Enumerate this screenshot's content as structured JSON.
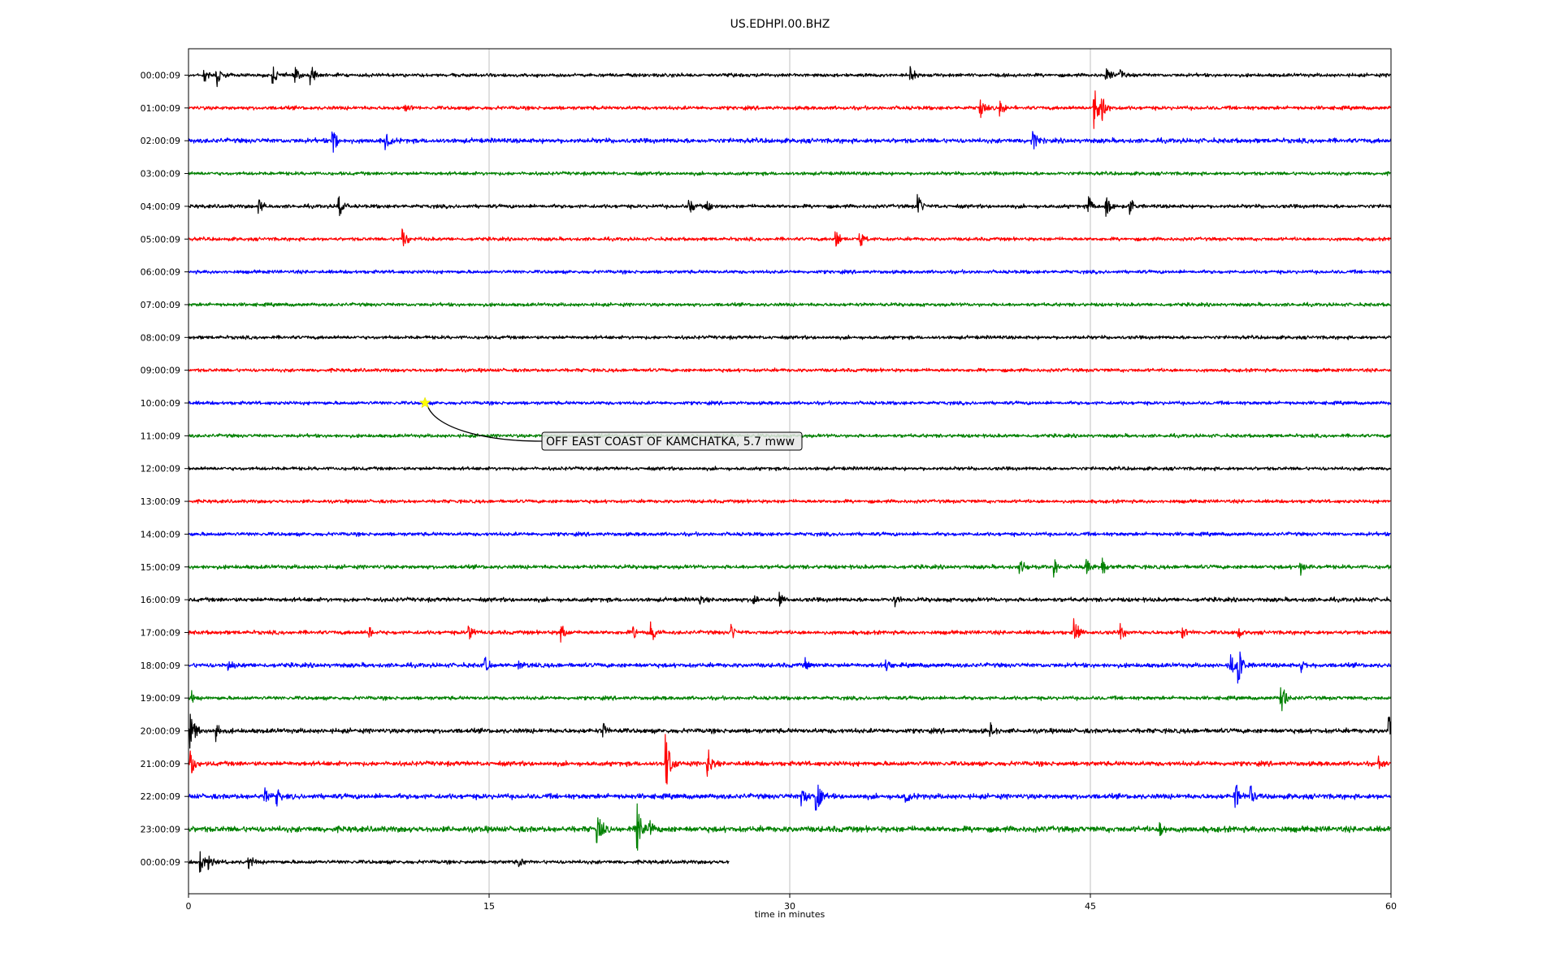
{
  "chart_data": {
    "type": "line",
    "title": "US.EDHPI.00.BHZ",
    "xlabel": "time in minutes",
    "xlim": [
      0,
      60
    ],
    "xticks": [
      0,
      15,
      30,
      45,
      60
    ],
    "xtick_labels": [
      "0",
      "15",
      "30",
      "45",
      "60"
    ],
    "grid": "vertical lines at 15, 30, 45",
    "line_colors": [
      "#000000",
      "#ff0000",
      "#0000ff",
      "#008000"
    ],
    "rows": [
      {
        "label": "00:00:09",
        "color": "#000000",
        "noise": 3.0,
        "end_minute": 60,
        "events": [
          [
            0.8,
            10
          ],
          [
            1.4,
            18
          ],
          [
            4.2,
            12
          ],
          [
            5.3,
            10
          ],
          [
            6.1,
            14
          ],
          [
            36,
            14
          ],
          [
            45.8,
            12
          ],
          [
            46.5,
            10
          ]
        ]
      },
      {
        "label": "01:00:09",
        "color": "#ff0000",
        "noise": 3.2,
        "end_minute": 60,
        "events": [
          [
            10.8,
            12
          ],
          [
            39.5,
            16
          ],
          [
            40.5,
            14
          ],
          [
            45.2,
            28
          ],
          [
            45.6,
            16
          ]
        ]
      },
      {
        "label": "02:00:09",
        "color": "#0000ff",
        "noise": 4.0,
        "end_minute": 60,
        "events": [
          [
            7.2,
            20
          ],
          [
            9.8,
            18
          ],
          [
            42.1,
            16
          ]
        ]
      },
      {
        "label": "03:00:09",
        "color": "#008000",
        "noise": 3.0,
        "end_minute": 60,
        "events": []
      },
      {
        "label": "04:00:09",
        "color": "#000000",
        "noise": 3.2,
        "end_minute": 60,
        "events": [
          [
            3.5,
            12
          ],
          [
            7.5,
            16
          ],
          [
            25,
            10
          ],
          [
            25.9,
            10
          ],
          [
            36.4,
            14
          ],
          [
            44.9,
            18
          ],
          [
            45.8,
            14
          ],
          [
            47,
            12
          ]
        ]
      },
      {
        "label": "05:00:09",
        "color": "#ff0000",
        "noise": 3.0,
        "end_minute": 60,
        "events": [
          [
            10.7,
            12
          ],
          [
            32.3,
            12
          ],
          [
            33.5,
            12
          ]
        ]
      },
      {
        "label": "06:00:09",
        "color": "#0000ff",
        "noise": 3.0,
        "end_minute": 60,
        "events": []
      },
      {
        "label": "07:00:09",
        "color": "#008000",
        "noise": 3.0,
        "end_minute": 60,
        "events": []
      },
      {
        "label": "08:00:09",
        "color": "#000000",
        "noise": 3.0,
        "end_minute": 60,
        "events": []
      },
      {
        "label": "09:00:09",
        "color": "#ff0000",
        "noise": 3.0,
        "end_minute": 60,
        "events": []
      },
      {
        "label": "10:00:09",
        "color": "#0000ff",
        "noise": 3.0,
        "end_minute": 60,
        "events": []
      },
      {
        "label": "11:00:09",
        "color": "#008000",
        "noise": 3.0,
        "end_minute": 60,
        "events": []
      },
      {
        "label": "12:00:09",
        "color": "#000000",
        "noise": 3.0,
        "end_minute": 60,
        "events": []
      },
      {
        "label": "13:00:09",
        "color": "#ff0000",
        "noise": 3.0,
        "end_minute": 60,
        "events": []
      },
      {
        "label": "14:00:09",
        "color": "#0000ff",
        "noise": 3.2,
        "end_minute": 60,
        "events": []
      },
      {
        "label": "15:00:09",
        "color": "#008000",
        "noise": 3.4,
        "end_minute": 60,
        "events": [
          [
            41.5,
            10
          ],
          [
            43.2,
            10
          ],
          [
            44.8,
            14
          ],
          [
            45.6,
            12
          ],
          [
            55.5,
            10
          ]
        ]
      },
      {
        "label": "16:00:09",
        "color": "#000000",
        "noise": 3.6,
        "end_minute": 60,
        "events": [
          [
            25.5,
            8
          ],
          [
            28.2,
            8
          ],
          [
            29.5,
            8
          ],
          [
            35.2,
            10
          ]
        ]
      },
      {
        "label": "17:00:09",
        "color": "#ff0000",
        "noise": 3.4,
        "end_minute": 60,
        "events": [
          [
            9,
            10
          ],
          [
            14,
            12
          ],
          [
            18.6,
            14
          ],
          [
            22.2,
            8
          ],
          [
            23.1,
            14
          ],
          [
            27.1,
            10
          ],
          [
            44.2,
            18
          ],
          [
            46.5,
            10
          ],
          [
            49.6,
            8
          ],
          [
            52.4,
            10
          ]
        ]
      },
      {
        "label": "18:00:09",
        "color": "#0000ff",
        "noise": 3.8,
        "end_minute": 60,
        "events": [
          [
            2,
            8
          ],
          [
            14.8,
            12
          ],
          [
            16.5,
            8
          ],
          [
            30.8,
            10
          ],
          [
            34.8,
            10
          ],
          [
            52,
            16
          ],
          [
            52.4,
            22
          ],
          [
            55.5,
            10
          ]
        ]
      },
      {
        "label": "19:00:09",
        "color": "#008000",
        "noise": 3.2,
        "end_minute": 60,
        "events": [
          [
            0.2,
            8
          ],
          [
            54.5,
            26
          ]
        ]
      },
      {
        "label": "20:00:09",
        "color": "#000000",
        "noise": 4.0,
        "end_minute": 60,
        "events": [
          [
            0.1,
            30
          ],
          [
            1.4,
            14
          ],
          [
            20.7,
            10
          ],
          [
            40,
            10
          ],
          [
            59.9,
            24
          ]
        ]
      },
      {
        "label": "21:00:09",
        "color": "#ff0000",
        "noise": 4.0,
        "end_minute": 60,
        "events": [
          [
            0.1,
            16
          ],
          [
            23.8,
            40
          ],
          [
            25.9,
            22
          ],
          [
            59.4,
            8
          ]
        ]
      },
      {
        "label": "22:00:09",
        "color": "#0000ff",
        "noise": 4.4,
        "end_minute": 60,
        "events": [
          [
            3.8,
            12
          ],
          [
            4.4,
            14
          ],
          [
            30.6,
            18
          ],
          [
            31.3,
            28
          ],
          [
            35.8,
            10
          ],
          [
            52.2,
            24
          ],
          [
            53,
            16
          ]
        ]
      },
      {
        "label": "23:00:09",
        "color": "#008000",
        "noise": 5.0,
        "end_minute": 60,
        "events": [
          [
            20.4,
            26
          ],
          [
            22.4,
            32
          ],
          [
            23,
            12
          ],
          [
            48.5,
            10
          ]
        ]
      },
      {
        "label": "00:00:09",
        "color": "#000000",
        "noise": 3.2,
        "end_minute": 27,
        "events": [
          [
            0.6,
            14
          ],
          [
            1.0,
            12
          ],
          [
            3,
            10
          ],
          [
            16.5,
            8
          ]
        ]
      }
    ],
    "annotation": {
      "text": "OFF EAST COAST OF KAMCHATKA, 5.7 mww",
      "row_index": 10,
      "minute": 11.8,
      "marker": "star",
      "marker_color": "#ffff00",
      "box_color": "#e6e6e6"
    }
  }
}
